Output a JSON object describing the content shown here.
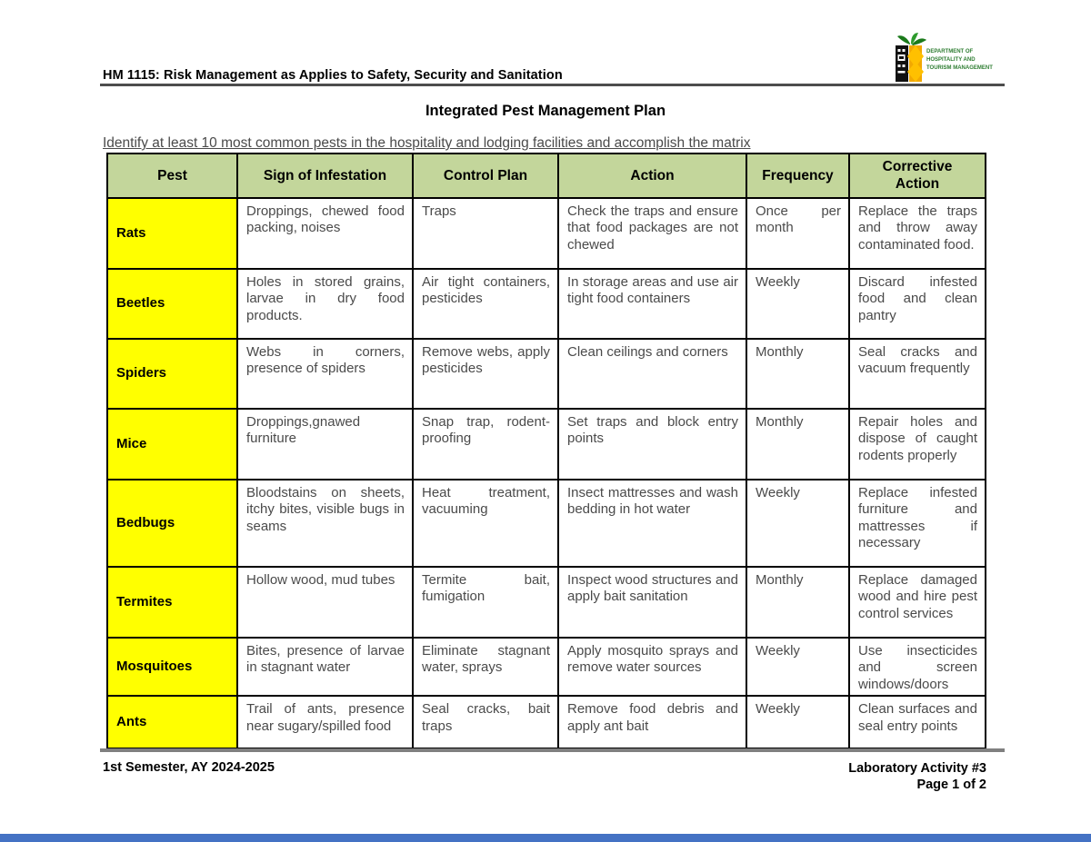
{
  "page": {
    "course_header": "HM 1115: Risk Management as Applies to Safety, Security and Sanitation",
    "title": "Integrated Pest Management Plan",
    "instruction": "Identify at least 10 most common pests in the hospitality and lodging facilities  and accomplish the matrix",
    "logo": {
      "line1": "DEPARTMENT OF",
      "line2": "HOSPITALITY AND",
      "line3": "TOURISM MANAGEMENT"
    },
    "footer": {
      "left": "1st Semester, AY 2024-2025",
      "right_line1": "Laboratory Activity #3",
      "right_line2": "Page 1 of 2"
    }
  },
  "table": {
    "headers": [
      "Pest",
      "Sign of Infestation",
      "Control Plan",
      "Action",
      "Frequency",
      "Corrective Action"
    ],
    "rows": [
      {
        "pest": "Rats",
        "sign": "Droppings, chewed food packing, noises",
        "control": "Traps",
        "action": "Check the traps and ensure that food packages are not chewed",
        "frequency": "Once per month",
        "corrective": "Replace the traps and throw away contaminated food."
      },
      {
        "pest": "Beetles",
        "sign": "Holes in stored grains, larvae in dry food products.",
        "control": "Air tight containers, pesticides",
        "action": "In storage areas and use air tight food containers",
        "frequency": "Weekly",
        "corrective": "Discard infested food and clean pantry"
      },
      {
        "pest": "Spiders",
        "sign": "Webs in corners, presence of spiders",
        "control": "Remove webs, apply pesticides",
        "action": "Clean ceilings and corners",
        "frequency": "Monthly",
        "corrective": "Seal cracks and vacuum frequently"
      },
      {
        "pest": "Mice",
        "sign": "Droppings,gnawed furniture",
        "control": "Snap trap, rodent-proofing",
        "action": "Set traps and block entry points",
        "frequency": "Monthly",
        "corrective": "Repair holes and dispose of caught rodents properly"
      },
      {
        "pest": "Bedbugs",
        "sign": "Bloodstains on sheets, itchy bites, visible bugs in seams",
        "control": "Heat treatment, vacuuming",
        "action": "Insect mattresses and wash bedding in hot water",
        "frequency": "Weekly",
        "corrective": "Replace infested furniture and mattresses if necessary"
      },
      {
        "pest": "Termites",
        "sign": "Hollow wood, mud tubes",
        "control": "Termite bait, fumigation",
        "action": "Inspect wood structures and apply bait sanitation",
        "frequency": "Monthly",
        "corrective": "Replace damaged wood and hire pest control services"
      },
      {
        "pest": "Mosquitoes",
        "sign": "Bites, presence of larvae in stagnant water",
        "control": "Eliminate stagnant water, sprays",
        "action": "Apply mosquito sprays and remove water sources",
        "frequency": "Weekly",
        "corrective": "Use insecticides and screen windows/doors"
      },
      {
        "pest": "Ants",
        "sign": "Trail of ants, presence near sugary/spilled food",
        "control": "Seal cracks, bait traps",
        "action": "Remove food debris and apply ant bait",
        "frequency": "Weekly",
        "corrective": "Clean surfaces and seal entry points"
      }
    ]
  },
  "colors": {
    "header_row_bg": "#C3D69B",
    "pest_column_bg": "#FFFF00",
    "bottom_bar": "#4472C4",
    "rule_gray": "#808080"
  }
}
